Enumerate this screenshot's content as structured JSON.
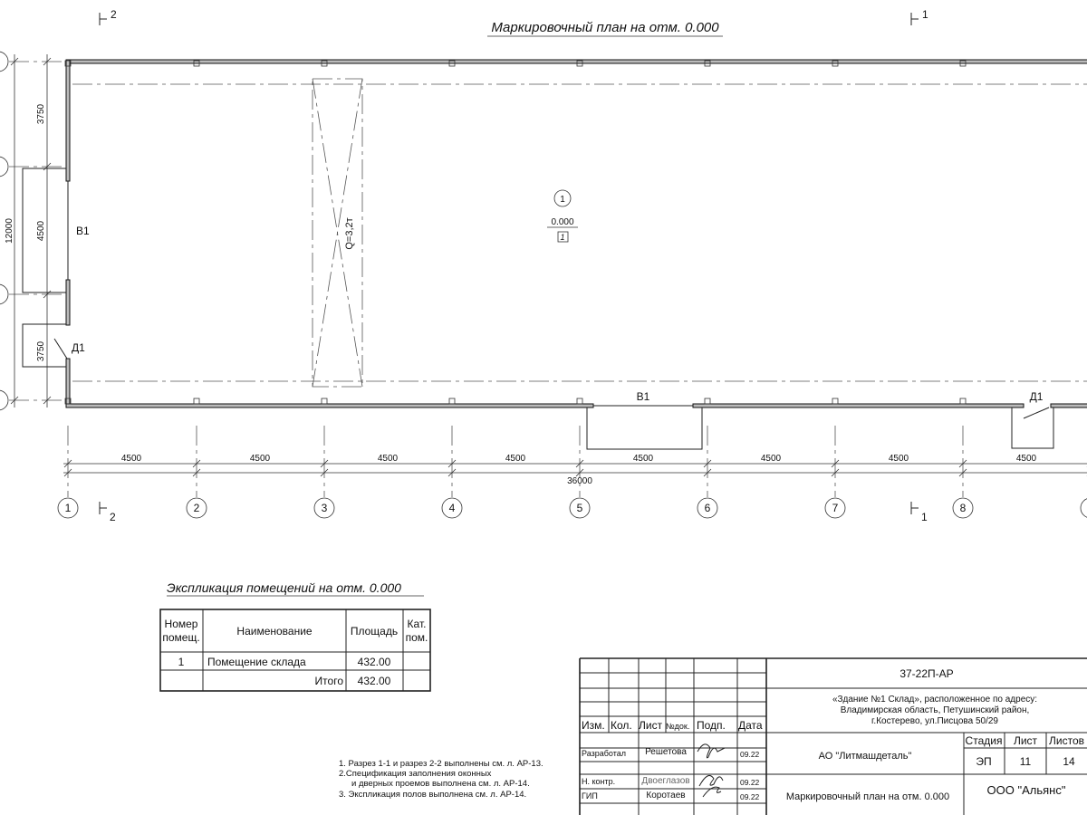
{
  "drawing": {
    "title": "Маркировочный план на отм. 0.000",
    "section_marks": {
      "top_left": "2",
      "top_right": "1",
      "bottom_left": "2",
      "bottom_right": "1"
    },
    "axes_horizontal": [
      "1",
      "2",
      "3",
      "4",
      "5",
      "6",
      "7",
      "8"
    ],
    "bay_dims": [
      "4500",
      "4500",
      "4500",
      "4500",
      "4500",
      "4500",
      "4500",
      "4500"
    ],
    "total_length": "36000",
    "left_dims": {
      "top": "3750",
      "middle": "4500",
      "bottom": "3750",
      "total": "12000"
    },
    "openings": {
      "window_left": "В1",
      "door_left": "Д1",
      "window_bottom": "В1",
      "door_bottom": "Д1"
    },
    "crane_label": "Q=3,2т",
    "room_marker": {
      "number": "1",
      "level": "0.000",
      "floor_type": "1"
    }
  },
  "explication": {
    "title": "Экспликация помещений на отм. 0.000",
    "headers": {
      "num_1": "Номер",
      "num_2": "помещ.",
      "name": "Наименование",
      "area": "Площадь",
      "cat_1": "Кат.",
      "cat_2": "пом."
    },
    "rows": [
      {
        "num": "1",
        "name": "Помещение склада",
        "area": "432.00",
        "cat": ""
      }
    ],
    "total_label": "Итого",
    "total_area": "432.00"
  },
  "notes": [
    "1. Разрез 1-1 и разрез 2-2 выполнены см. л. АР-13.",
    "2.Спецификация заполнения оконных",
    "и дверных проемов выполнена см. л. АР-14.",
    "3. Экспликация полов выполнена см. л. АР-14."
  ],
  "title_block": {
    "headers": {
      "izm": "Изм.",
      "kol": "Кол.",
      "list": "Лист",
      "ndok": "№док.",
      "podp": "Подп.",
      "data": "Дата"
    },
    "roles": [
      {
        "role": "Разработал",
        "name": "Решетова",
        "date": "09.22"
      },
      {
        "role": "Н. контр.",
        "name": "Двоеглазов",
        "date": "09.22"
      },
      {
        "role": "ГИП",
        "name": "Коротаев",
        "date": "09.22"
      }
    ],
    "code": "37-22П-АР",
    "address_1": "«Здание №1 Склад», расположенное по адресу:",
    "address_2": "Владимирская область, Петушинский район,",
    "address_3": "г.Костерево, ул.Писцова 50/29",
    "client": "АО \"Литмашдеталь\"",
    "stage_label": "Стадия",
    "sheet_label": "Лист",
    "sheets_label": "Листов",
    "stage": "ЭП",
    "sheet": "11",
    "sheets": "14",
    "sheet_title": "Маркировочный план на отм. 0.000",
    "company": "ООО \"Альянс\""
  }
}
